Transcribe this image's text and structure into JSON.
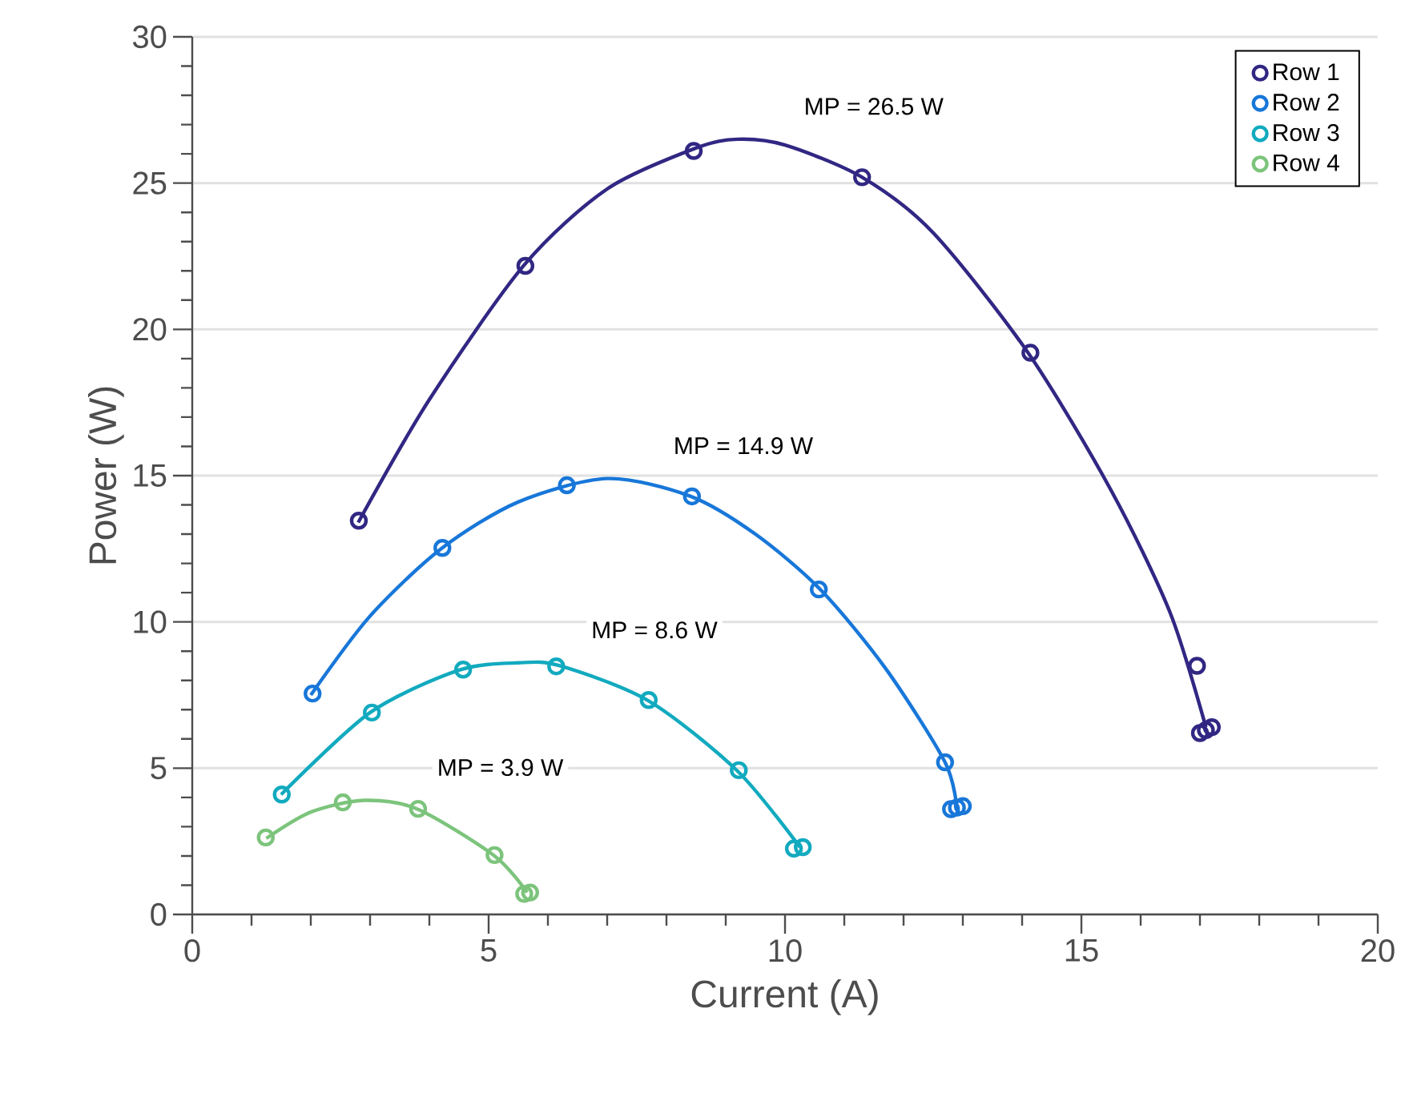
{
  "chart_data": {
    "type": "scatter",
    "xlabel": "Current (A)",
    "ylabel": "Power (W)",
    "xlim": [
      0,
      20
    ],
    "ylim": [
      0,
      30
    ],
    "xticks": [
      0,
      5,
      10,
      15,
      20
    ],
    "yticks": [
      0,
      5,
      10,
      15,
      20,
      25,
      30
    ],
    "grid": "y",
    "legend": "top right",
    "marker": "circle",
    "series": [
      {
        "name": "Row 1",
        "color": "#312783",
        "x": [
          2.81,
          5.62,
          8.46,
          11.3,
          14.14,
          16.95,
          17.0,
          17.1,
          17.2
        ],
        "values": [
          13.46,
          22.17,
          26.1,
          25.2,
          19.2,
          8.5,
          6.2,
          6.3,
          6.4
        ]
      },
      {
        "name": "Row 2",
        "color": "#1877d9",
        "x": [
          2.03,
          4.22,
          6.32,
          8.43,
          10.57,
          12.7,
          12.8,
          12.9,
          13.0
        ],
        "values": [
          7.55,
          12.53,
          14.67,
          14.29,
          11.11,
          5.2,
          3.6,
          3.65,
          3.7
        ]
      },
      {
        "name": "Row 3",
        "color": "#12aabf",
        "x": [
          1.51,
          3.03,
          4.57,
          6.14,
          7.7,
          9.22,
          10.15,
          10.3
        ],
        "values": [
          4.1,
          6.9,
          8.37,
          8.48,
          7.33,
          4.93,
          2.25,
          2.3
        ]
      },
      {
        "name": "Row 4",
        "color": "#7cc47c",
        "x": [
          1.24,
          2.54,
          3.81,
          5.1,
          5.6,
          5.7
        ],
        "values": [
          2.63,
          3.83,
          3.61,
          2.03,
          0.7,
          0.75
        ]
      },
      {
        "type": "line",
        "marker": "none",
        "color": "#312783",
        "x": [
          2.8,
          4,
          5.6,
          7,
          8.5,
          9.2,
          10,
          11.3,
          12.5,
          14.1,
          15.5,
          16.5,
          17.1
        ],
        "values": [
          13.4,
          17.6,
          22.2,
          24.8,
          26.2,
          26.5,
          26.3,
          25.2,
          23.3,
          19.2,
          14.5,
          10.3,
          6.4
        ]
      },
      {
        "type": "line",
        "marker": "none",
        "color": "#1877d9",
        "x": [
          2.0,
          3,
          4.2,
          5.5,
          7,
          8.4,
          9.5,
          10.6,
          11.7,
          12.7,
          12.9
        ],
        "values": [
          7.5,
          10.2,
          12.5,
          14.1,
          14.9,
          14.3,
          13.0,
          11.1,
          8.4,
          5.2,
          3.6
        ]
      },
      {
        "type": "line",
        "marker": "none",
        "color": "#12aabf",
        "x": [
          1.5,
          3,
          4.5,
          5.5,
          6.2,
          7.7,
          9.2,
          10.25
        ],
        "values": [
          4.1,
          6.9,
          8.35,
          8.6,
          8.5,
          7.3,
          4.9,
          2.3
        ]
      },
      {
        "type": "line",
        "marker": "none",
        "color": "#7cc47c",
        "x": [
          1.25,
          2,
          2.9,
          3.8,
          5.1,
          5.65
        ],
        "values": [
          2.6,
          3.5,
          3.9,
          3.6,
          2.0,
          0.75
        ]
      }
    ],
    "annotations": [
      "MP = 26.5 W",
      "MP = 14.9 W",
      "MP = 8.6 W",
      "MP = 3.9 W"
    ]
  }
}
